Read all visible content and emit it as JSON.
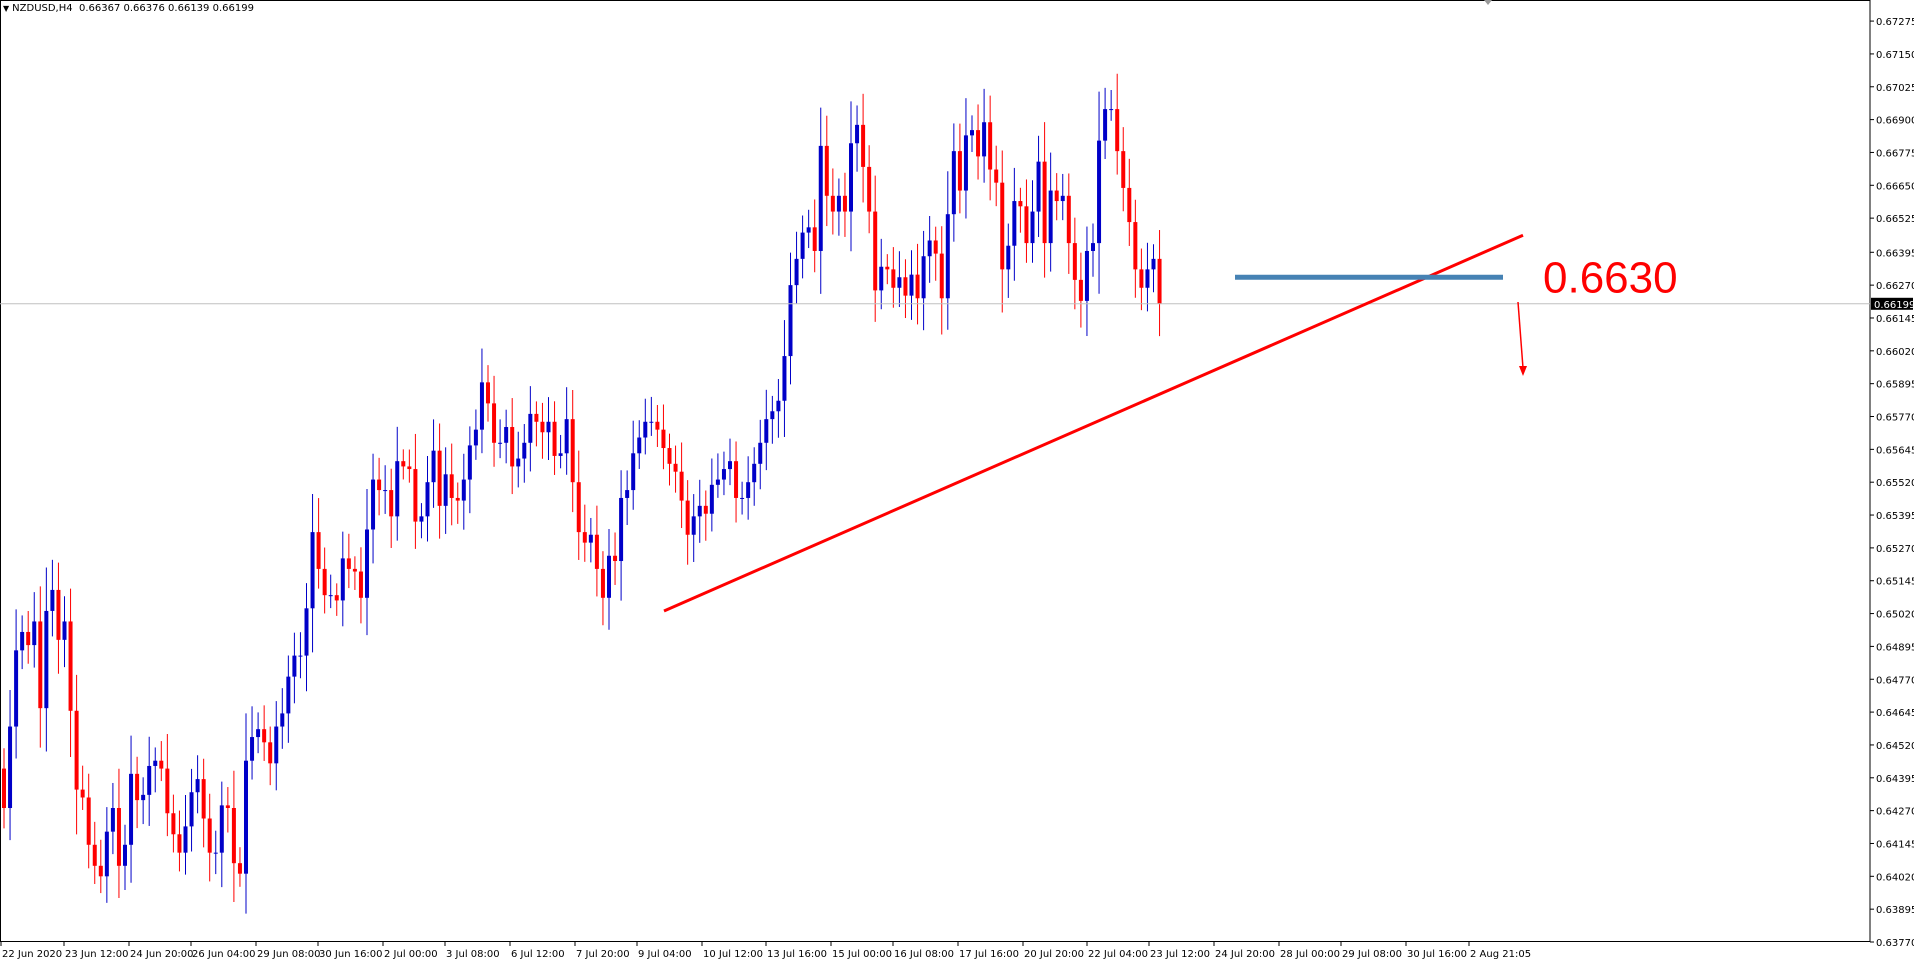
{
  "header": {
    "symbol_label": "NZDUSD,H4",
    "ohlc_label": "0.66367 0.66376 0.66139 0.66199"
  },
  "annotation": {
    "level_label": "0.6630"
  },
  "colors": {
    "bull": "#0000c8",
    "bear": "#ff0000",
    "support_line": "#4682b4",
    "trend_line": "#ff0000",
    "grid_line": "#c0c0c0"
  },
  "chart_data": {
    "type": "candlestick",
    "symbol": "NZDUSD",
    "timeframe": "H4",
    "current_price": 0.66199,
    "ylim": [
      0.6377,
      0.6734
    ],
    "y_ticks": [
      "0.67275",
      "0.67150",
      "0.67025",
      "0.66900",
      "0.66775",
      "0.66650",
      "0.66525",
      "0.66395",
      "0.66270",
      "0.66145",
      "0.66020",
      "0.65895",
      "0.65770",
      "0.65645",
      "0.65520",
      "0.65395",
      "0.65270",
      "0.65145",
      "0.65020",
      "0.64895",
      "0.64770",
      "0.64645",
      "0.64520",
      "0.64395",
      "0.64270",
      "0.64145",
      "0.64020",
      "0.63895",
      "0.63770"
    ],
    "x_ticks": [
      "22 Jun 2020",
      "23 Jun 12:00",
      "24 Jun 20:00",
      "26 Jun 04:00",
      "29 Jun 08:00",
      "30 Jun 16:00",
      "2 Jul 00:00",
      "3 Jul 08:00",
      "6 Jul 12:00",
      "7 Jul 20:00",
      "9 Jul 04:00",
      "10 Jul 12:00",
      "13 Jul 16:00",
      "15 Jul 00:00",
      "16 Jul 08:00",
      "17 Jul 16:00",
      "20 Jul 20:00",
      "22 Jul 04:00",
      "23 Jul 12:00",
      "24 Jul 20:00",
      "28 Jul 00:00",
      "29 Jul 08:00",
      "30 Jul 16:00",
      "2 Aug 21:05"
    ],
    "closes": [
      0.6428,
      0.6459,
      0.6488,
      0.6495,
      0.649,
      0.6499,
      0.6466,
      0.6503,
      0.6511,
      0.6492,
      0.6499,
      0.6465,
      0.6435,
      0.6432,
      0.6414,
      0.6406,
      0.6402,
      0.6419,
      0.6428,
      0.6406,
      0.6414,
      0.6441,
      0.6431,
      0.6433,
      0.6444,
      0.6446,
      0.6443,
      0.6426,
      0.6418,
      0.6411,
      0.6421,
      0.6434,
      0.6439,
      0.6424,
      0.6411,
      0.6411,
      0.6429,
      0.6428,
      0.6407,
      0.6403,
      0.6446,
      0.6455,
      0.6458,
      0.6453,
      0.6445,
      0.6459,
      0.6464,
      0.6478,
      0.6486,
      0.6486,
      0.6504,
      0.6533,
      0.6519,
      0.6509,
      0.6509,
      0.6507,
      0.6523,
      0.6519,
      0.6518,
      0.6508,
      0.6534,
      0.6553,
      0.6549,
      0.6549,
      0.6539,
      0.656,
      0.6558,
      0.6557,
      0.6537,
      0.6539,
      0.6552,
      0.6564,
      0.6543,
      0.6555,
      0.6546,
      0.6545,
      0.6553,
      0.6566,
      0.6572,
      0.659,
      0.6582,
      0.6567,
      0.6567,
      0.6573,
      0.6558,
      0.6561,
      0.6567,
      0.6578,
      0.6575,
      0.6571,
      0.6575,
      0.6562,
      0.6563,
      0.6576,
      0.6552,
      0.6533,
      0.6529,
      0.6532,
      0.6519,
      0.6508,
      0.6524,
      0.6522,
      0.6546,
      0.6549,
      0.6563,
      0.6569,
      0.6575,
      0.6575,
      0.6572,
      0.6565,
      0.6559,
      0.6556,
      0.6545,
      0.6532,
      0.6539,
      0.6543,
      0.654,
      0.6551,
      0.6553,
      0.6557,
      0.656,
      0.6546,
      0.6546,
      0.6552,
      0.6559,
      0.6567,
      0.6576,
      0.6579,
      0.6583,
      0.66,
      0.6627,
      0.6637,
      0.6647,
      0.6649,
      0.664,
      0.668,
      0.6661,
      0.6655,
      0.6661,
      0.6655,
      0.6681,
      0.6688,
      0.6672,
      0.6655,
      0.6625,
      0.6634,
      0.6633,
      0.6626,
      0.663,
      0.6623,
      0.6631,
      0.6622,
      0.6638,
      0.6644,
      0.6639,
      0.6622,
      0.6654,
      0.6678,
      0.6663,
      0.6684,
      0.6686,
      0.6676,
      0.6689,
      0.6671,
      0.6666,
      0.6633,
      0.6642,
      0.6659,
      0.6657,
      0.6643,
      0.6655,
      0.6674,
      0.6643,
      0.6663,
      0.6659,
      0.6661,
      0.6643,
      0.6629,
      0.6621,
      0.664,
      0.6643,
      0.6682,
      0.6694,
      0.6694,
      0.6678,
      0.6664,
      0.6651,
      0.6633,
      0.6626,
      0.6633,
      0.6637,
      0.662
    ],
    "trend_line": {
      "start": [
        "13 Jul 16:00",
        0.6503
      ],
      "end": [
        "2 Aug 21:05",
        0.6646
      ]
    },
    "horizontal_level": 0.663,
    "projection": "down"
  }
}
